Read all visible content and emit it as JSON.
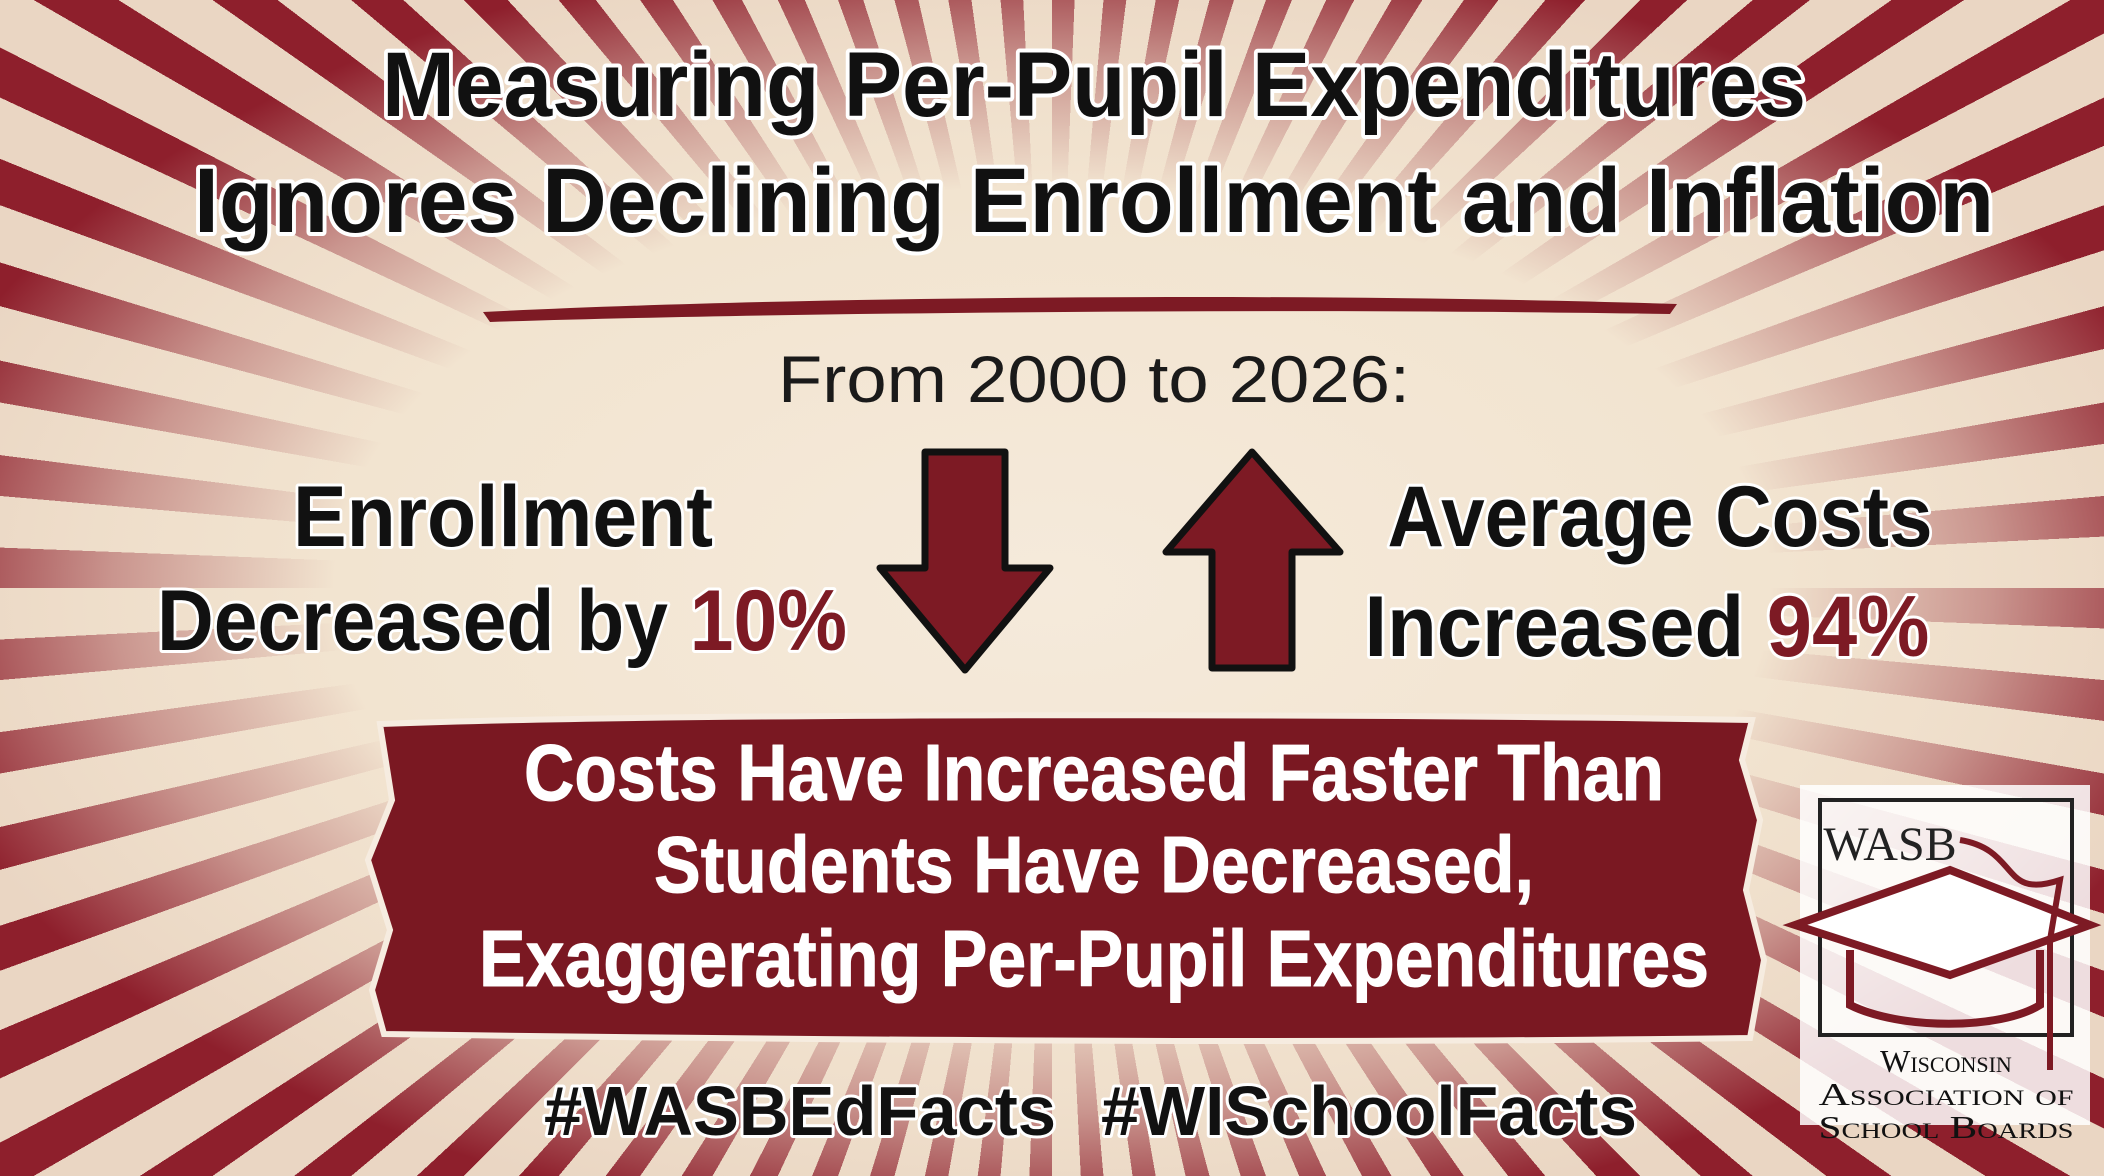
{
  "header": {
    "title_lines": [
      "Measuring Per-Pupil Expenditures",
      "Ignores Declining Enrollment and Inflation"
    ],
    "subtitle": "From 2000 to 2026:"
  },
  "left": {
    "line1": "Enrollment",
    "line2": "Decreased by",
    "figure": "10%"
  },
  "right": {
    "line1": "Average Costs",
    "line2": "Increased",
    "figure": "94%"
  },
  "banner": {
    "lines": [
      "Costs Have Increased Faster Than",
      "Students Have Decreased,",
      "Exaggerating Per-Pupil Expenditures"
    ]
  },
  "hashtags": [
    "#WASBEdFacts",
    "#WISchoolFacts"
  ],
  "logo": {
    "mark": "WASB",
    "name_lines": [
      "Wisconsin",
      "Association of",
      "School Boards"
    ]
  }
}
